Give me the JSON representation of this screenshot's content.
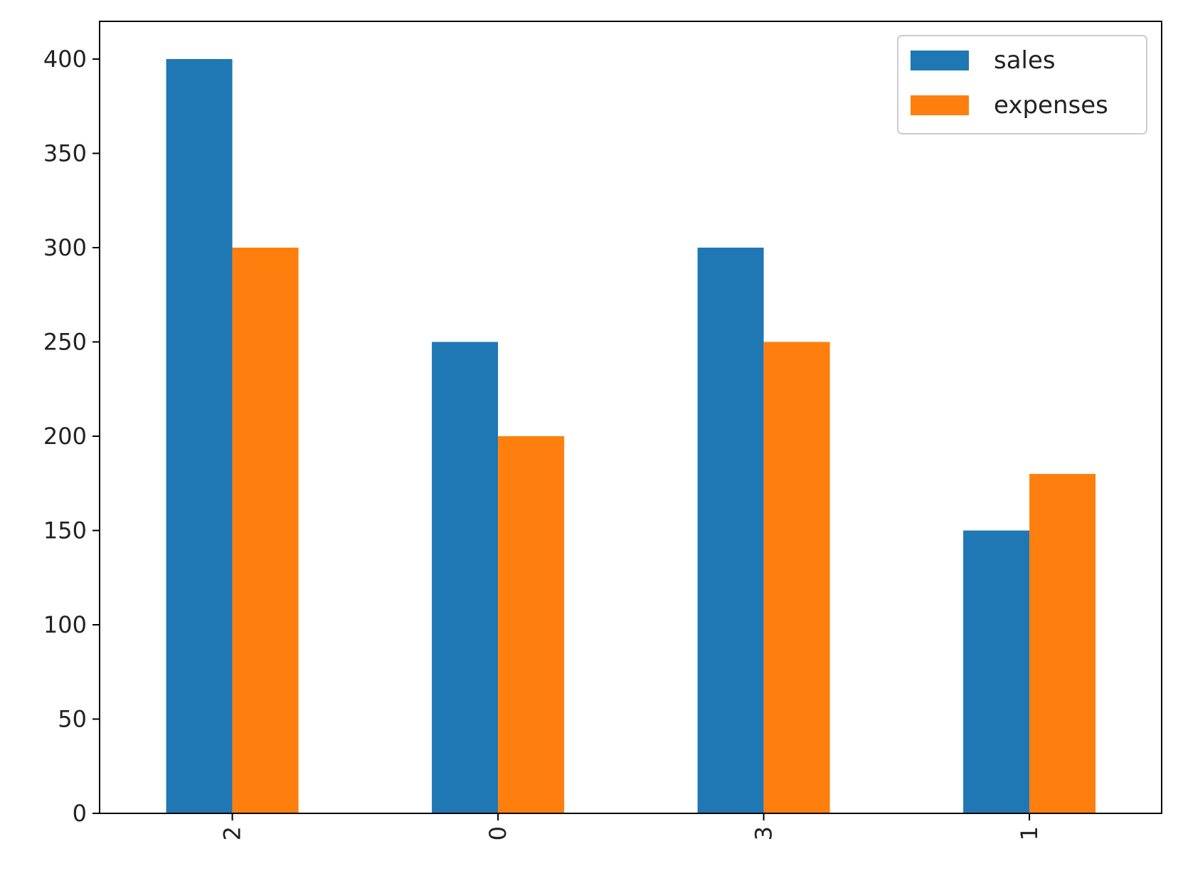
{
  "chart_data": {
    "type": "bar",
    "categories": [
      "2",
      "0",
      "3",
      "1"
    ],
    "series": [
      {
        "name": "sales",
        "values": [
          400,
          250,
          300,
          150
        ],
        "color": "#1f77b4"
      },
      {
        "name": "expenses",
        "values": [
          300,
          200,
          250,
          180
        ],
        "color": "#ff7f0e"
      }
    ],
    "title": "",
    "xlabel": "",
    "ylabel": "",
    "ylim": [
      0,
      420
    ],
    "yticks": [
      0,
      50,
      100,
      150,
      200,
      250,
      300,
      350,
      400
    ],
    "xtick_rotation": 90,
    "grid": false,
    "legend": "upper right"
  }
}
